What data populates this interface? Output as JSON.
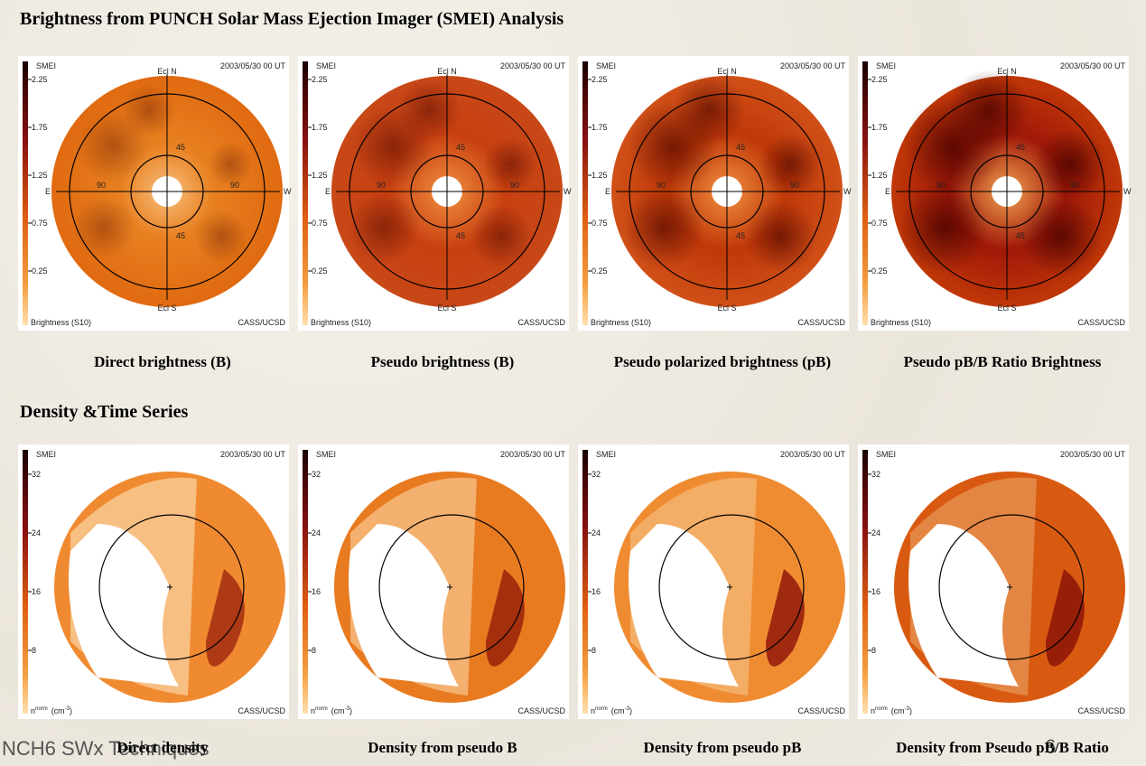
{
  "section_1": {
    "title": "Brightness from PUNCH Solar Mass Ejection Imager (SMEI) Analysis",
    "panels": [
      {
        "source": "SMEI",
        "date": "2003/05/30 00 UT",
        "scale_ticks": [
          "2.25",
          "1.75",
          "1.25",
          "0.75",
          "0.25"
        ],
        "north": "Ecl N",
        "south": "Ecl S",
        "east": "E",
        "west": "W",
        "ring_labels": [
          "45",
          "45",
          "90",
          "90"
        ],
        "unit": "Brightness (S10)",
        "credit": "CASS/UCSD",
        "caption": "Direct brightness (B)"
      },
      {
        "source": "SMEI",
        "date": "2003/05/30 00 UT",
        "scale_ticks": [
          "2.25",
          "1.75",
          "1.25",
          "0.75",
          "0.25"
        ],
        "north": "Ecl N",
        "south": "Ecl S",
        "east": "E",
        "west": "W",
        "ring_labels": [
          "45",
          "45",
          "90",
          "90"
        ],
        "unit": "Brightness (S10)",
        "credit": "CASS/UCSD",
        "caption": "Pseudo brightness (B)"
      },
      {
        "source": "SMEI",
        "date": "2003/05/30 00 UT",
        "scale_ticks": [
          "2.25",
          "1.75",
          "1.25",
          "0.75",
          "0.25"
        ],
        "north": "Ecl N",
        "south": "Ecl S",
        "east": "E",
        "west": "W",
        "ring_labels": [
          "45",
          "45",
          "90",
          "90"
        ],
        "unit": "Brightness (S10)",
        "credit": "CASS/UCSD",
        "caption": "Pseudo polarized brightness (pB)"
      },
      {
        "source": "SMEI",
        "date": "2003/05/30 00 UT",
        "scale_ticks": [
          "2.25",
          "1.75",
          "1.25",
          "0.75",
          "0.25"
        ],
        "north": "Ecl N",
        "south": "Ecl S",
        "east": "E",
        "west": "W",
        "ring_labels": [
          "45",
          "45",
          "90",
          "90"
        ],
        "unit": "Brightness (S10)",
        "credit": "CASS/UCSD",
        "caption": "Pseudo pB/B Ratio Brightness"
      }
    ]
  },
  "section_2": {
    "title": "Density &Time Series",
    "panels": [
      {
        "source": "SMEI",
        "date": "2003/05/30 00 UT",
        "scale_ticks": [
          "32",
          "24",
          "16",
          "8"
        ],
        "unit": {
          "base": "n",
          "sup": "norm",
          "paren": "(cm",
          "exp": "-3",
          "close": ")"
        },
        "credit": "CASS/UCSD",
        "caption": "Direct density"
      },
      {
        "source": "SMEI",
        "date": "2003/05/30 00 UT",
        "scale_ticks": [
          "32",
          "24",
          "16",
          "8"
        ],
        "unit": {
          "base": "n",
          "sup": "norm",
          "paren": "(cm",
          "exp": "-3",
          "close": ")"
        },
        "credit": "CASS/UCSD",
        "caption": "Density from pseudo B"
      },
      {
        "source": "SMEI",
        "date": "2003/05/30 00 UT",
        "scale_ticks": [
          "32",
          "24",
          "16",
          "8"
        ],
        "unit": {
          "base": "n",
          "sup": "norm",
          "paren": "(cm",
          "exp": "-3",
          "close": ")"
        },
        "credit": "CASS/UCSD",
        "caption": "Density from pseudo pB"
      },
      {
        "source": "SMEI",
        "date": "2003/05/30 00 UT",
        "scale_ticks": [
          "32",
          "24",
          "16",
          "8"
        ],
        "unit": {
          "base": "n",
          "sup": "norm",
          "paren": "(cm",
          "exp": "-3",
          "close": ")"
        },
        "credit": "CASS/UCSD",
        "caption": "Density from Pseudo pB/B Ratio"
      }
    ]
  },
  "footer": {
    "text": "NCH6 SWx Techniques",
    "page": "6"
  }
}
